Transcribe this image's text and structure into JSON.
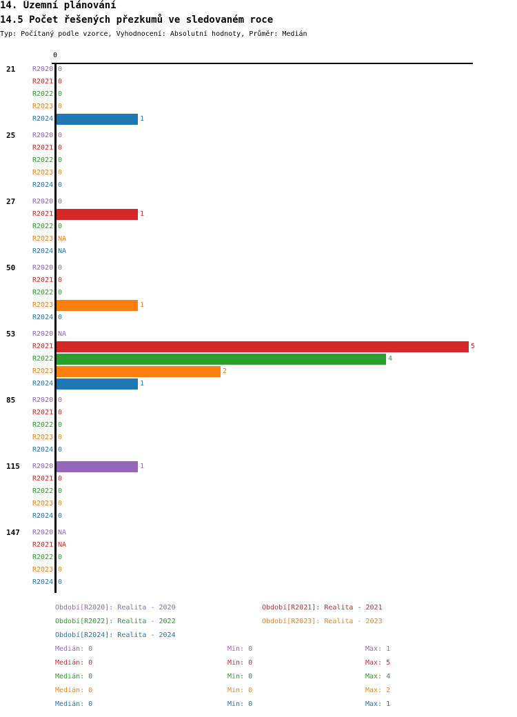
{
  "header": {
    "section_title": "14. Územní plánování",
    "chart_title": "14.5 Počet řešených přezkumů ve sledovaném roce",
    "subtitle": "Typ: Počítaný podle vzorce, Vyhodnocení: Absolutní hodnoty, Průměr: Medián"
  },
  "chart_data": {
    "type": "bar",
    "orientation": "horizontal",
    "title": "14.5 Počet řešených přezkumů ve sledovaném roce",
    "x_tick_labels": [
      "0"
    ],
    "xlim": [
      0,
      5
    ],
    "categories": [
      "21",
      "25",
      "27",
      "50",
      "53",
      "85",
      "115",
      "147"
    ],
    "series": [
      {
        "name": "R2020",
        "color": "#9467bd",
        "values": [
          0,
          0,
          0,
          0,
          "NA",
          0,
          1,
          "NA"
        ]
      },
      {
        "name": "R2021",
        "color": "#d62728",
        "values": [
          0,
          0,
          1,
          0,
          5,
          0,
          0,
          "NA"
        ]
      },
      {
        "name": "R2022",
        "color": "#2ca02c",
        "values": [
          0,
          0,
          0,
          0,
          4,
          0,
          0,
          0
        ]
      },
      {
        "name": "R2023",
        "color": "#ff7f0e",
        "values": [
          0,
          0,
          "NA",
          1,
          2,
          0,
          0,
          0
        ]
      },
      {
        "name": "R2024",
        "color": "#1f77b4",
        "values": [
          1,
          0,
          "NA",
          0,
          1,
          0,
          0,
          0
        ]
      }
    ]
  },
  "legend": [
    {
      "text": "Období[R2020]: Realita - 2020",
      "color": "#9467bd"
    },
    {
      "text": "Období[R2021]: Realita - 2021",
      "color": "#d62728"
    },
    {
      "text": "Období[R2022]: Realita - 2022",
      "color": "#2ca02c"
    },
    {
      "text": "Období[R2023]: Realita - 2023",
      "color": "#ff7f0e"
    },
    {
      "text": "Období[R2024]: Realita - 2024",
      "color": "#1f77b4"
    }
  ],
  "stats": [
    {
      "median": "Medián: 0",
      "min": "Min: 0",
      "max": "Max: 1",
      "color": "#9467bd"
    },
    {
      "median": "Medián: 0",
      "min": "Min: 0",
      "max": "Max: 5",
      "color": "#d62728"
    },
    {
      "median": "Medián: 0",
      "min": "Min: 0",
      "max": "Max: 4",
      "color": "#2ca02c"
    },
    {
      "median": "Medián: 0",
      "min": "Min: 0",
      "max": "Max: 2",
      "color": "#ff7f0e"
    },
    {
      "median": "Medián: 0",
      "min": "Min: 0",
      "max": "Max: 1",
      "color": "#1f77b4"
    }
  ]
}
